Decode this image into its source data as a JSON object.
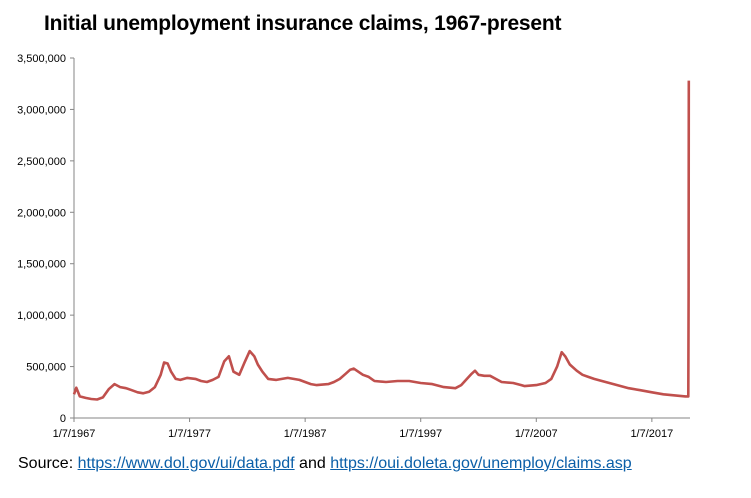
{
  "chart_data": {
    "type": "line",
    "title": "Initial unemployment insurance claims, 1967-present",
    "xlabel": "",
    "ylabel": "",
    "ylim": [
      0,
      3500000
    ],
    "xlim": [
      1967.0,
      2020.3
    ],
    "yticks": [
      0,
      500000,
      1000000,
      1500000,
      2000000,
      2500000,
      3000000,
      3500000
    ],
    "ytick_labels": [
      "0",
      "500,000",
      "1,000,000",
      "1,500,000",
      "2,000,000",
      "2,500,000",
      "3,000,000",
      "3,500,000"
    ],
    "xticks": [
      1967.0,
      1977.0,
      1987.0,
      1997.0,
      2007.0,
      2017.0
    ],
    "xtick_labels": [
      "1/7/1967",
      "1/7/1977",
      "1/7/1987",
      "1/7/1997",
      "1/7/2007",
      "1/7/2017"
    ],
    "grid": false,
    "legend": "none",
    "line_color": "#c0504d",
    "series": [
      {
        "x": [
          1967.0,
          1967.2,
          1967.5,
          1968.0,
          1968.5,
          1969.0,
          1969.5,
          1970.0,
          1970.5,
          1971.0,
          1971.5,
          1972.0,
          1972.5,
          1973.0,
          1973.5,
          1974.0,
          1974.5,
          1974.8,
          1975.1,
          1975.4,
          1975.8,
          1976.2,
          1976.8,
          1977.5,
          1978.0,
          1978.5,
          1979.0,
          1979.5,
          1980.0,
          1980.4,
          1980.8,
          1981.3,
          1981.8,
          1982.2,
          1982.6,
          1982.9,
          1983.3,
          1983.8,
          1984.5,
          1985.0,
          1985.5,
          1986.0,
          1986.5,
          1987.0,
          1987.5,
          1988.0,
          1989.0,
          1989.5,
          1990.0,
          1990.5,
          1990.9,
          1991.2,
          1991.6,
          1992.0,
          1992.5,
          1993.0,
          1994.0,
          1995.0,
          1996.0,
          1997.0,
          1998.0,
          1999.0,
          2000.0,
          2000.5,
          2001.0,
          2001.4,
          2001.7,
          2002.0,
          2002.5,
          2003.0,
          2003.5,
          2004.0,
          2005.0,
          2005.7,
          2006.0,
          2007.0,
          2007.8,
          2008.3,
          2008.8,
          2009.2,
          2009.5,
          2009.9,
          2010.5,
          2011.0,
          2011.5,
          2012.0,
          2013.0,
          2014.0,
          2015.0,
          2016.0,
          2017.0,
          2018.0,
          2019.0,
          2019.9,
          2020.15,
          2020.18,
          2020.2
        ],
        "values": [
          230000,
          295000,
          210000,
          195000,
          185000,
          180000,
          200000,
          280000,
          330000,
          300000,
          290000,
          270000,
          250000,
          240000,
          255000,
          300000,
          420000,
          540000,
          530000,
          450000,
          380000,
          370000,
          390000,
          380000,
          360000,
          350000,
          370000,
          400000,
          550000,
          600000,
          450000,
          420000,
          550000,
          650000,
          600000,
          520000,
          450000,
          380000,
          370000,
          380000,
          390000,
          380000,
          370000,
          350000,
          330000,
          320000,
          330000,
          350000,
          380000,
          430000,
          470000,
          480000,
          450000,
          420000,
          400000,
          360000,
          350000,
          360000,
          360000,
          340000,
          330000,
          300000,
          290000,
          320000,
          380000,
          430000,
          460000,
          420000,
          410000,
          410000,
          380000,
          350000,
          340000,
          320000,
          310000,
          320000,
          340000,
          380000,
          500000,
          640000,
          600000,
          520000,
          460000,
          420000,
          400000,
          380000,
          350000,
          320000,
          290000,
          270000,
          250000,
          230000,
          220000,
          210000,
          210000,
          1200000,
          3280000
        ]
      }
    ]
  },
  "source": {
    "prefix": "Source: ",
    "link1": "https://www.dol.gov/ui/data.pdf",
    "middle": " and ",
    "link2": "https://oui.doleta.gov/unemploy/claims.asp"
  }
}
